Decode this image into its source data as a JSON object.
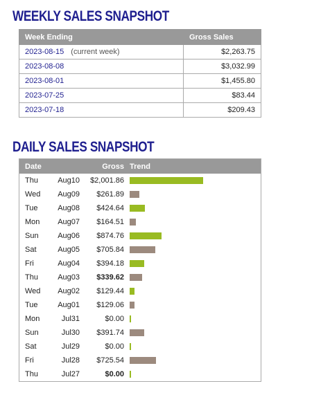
{
  "weekly": {
    "title": "WEEKLY SALES SNAPSHOT",
    "columns": [
      "Week Ending",
      "Gross Sales"
    ],
    "rows": [
      {
        "week": "2023-08-15",
        "note": "(current week)",
        "gross": "$2,263.75"
      },
      {
        "week": "2023-08-08",
        "note": "",
        "gross": "$3,032.99"
      },
      {
        "week": "2023-08-01",
        "note": "",
        "gross": "$1,455.80"
      },
      {
        "week": "2023-07-25",
        "note": "",
        "gross": "$83.44"
      },
      {
        "week": "2023-07-18",
        "note": "",
        "gross": "$209.43"
      }
    ]
  },
  "daily": {
    "title": "DAILY SALES SNAPSHOT",
    "columns": [
      "Date",
      "Gross",
      "Trend"
    ],
    "colors": {
      "up": "#99bb22",
      "down": "#9c8a7e"
    },
    "rows": [
      {
        "day": "Thu",
        "date": "Aug10",
        "gross": "$2,001.86",
        "amount": 2001.86,
        "trend": "up",
        "bold": false
      },
      {
        "day": "Wed",
        "date": "Aug09",
        "gross": "$261.89",
        "amount": 261.89,
        "trend": "down",
        "bold": false
      },
      {
        "day": "Tue",
        "date": "Aug08",
        "gross": "$424.64",
        "amount": 424.64,
        "trend": "up",
        "bold": false
      },
      {
        "day": "Mon",
        "date": "Aug07",
        "gross": "$164.51",
        "amount": 164.51,
        "trend": "down",
        "bold": false
      },
      {
        "day": "Sun",
        "date": "Aug06",
        "gross": "$874.76",
        "amount": 874.76,
        "trend": "up",
        "bold": false
      },
      {
        "day": "Sat",
        "date": "Aug05",
        "gross": "$705.84",
        "amount": 705.84,
        "trend": "down",
        "bold": false
      },
      {
        "day": "Fri",
        "date": "Aug04",
        "gross": "$394.18",
        "amount": 394.18,
        "trend": "up",
        "bold": false
      },
      {
        "day": "Thu",
        "date": "Aug03",
        "gross": "$339.62",
        "amount": 339.62,
        "trend": "down",
        "bold": true
      },
      {
        "day": "Wed",
        "date": "Aug02",
        "gross": "$129.44",
        "amount": 129.44,
        "trend": "up",
        "bold": false
      },
      {
        "day": "Tue",
        "date": "Aug01",
        "gross": "$129.06",
        "amount": 129.06,
        "trend": "down",
        "bold": false
      },
      {
        "day": "Mon",
        "date": "Jul31",
        "gross": "$0.00",
        "amount": 0,
        "trend": "up",
        "bold": false
      },
      {
        "day": "Sun",
        "date": "Jul30",
        "gross": "$391.74",
        "amount": 391.74,
        "trend": "down",
        "bold": false
      },
      {
        "day": "Sat",
        "date": "Jul29",
        "gross": "$0.00",
        "amount": 0,
        "trend": "up",
        "bold": false
      },
      {
        "day": "Fri",
        "date": "Jul28",
        "gross": "$725.54",
        "amount": 725.54,
        "trend": "down",
        "bold": false
      },
      {
        "day": "Thu",
        "date": "Jul27",
        "gross": "$0.00",
        "amount": 0,
        "trend": "up",
        "bold": true
      }
    ]
  }
}
